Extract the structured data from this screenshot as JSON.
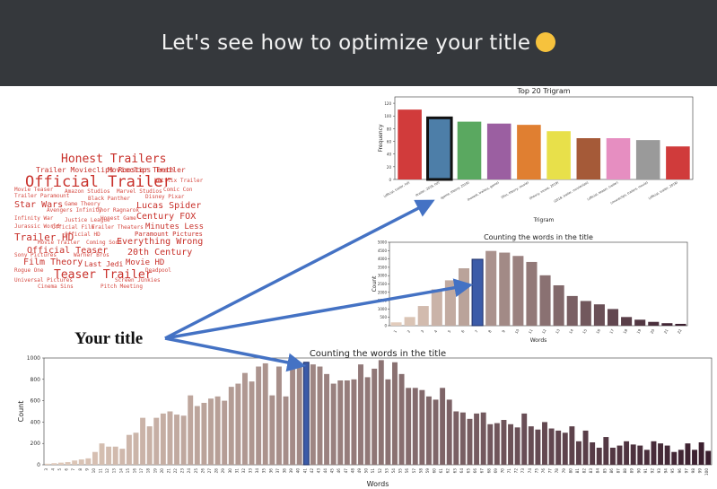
{
  "header": {
    "title": "Let's see how to optimize your title",
    "emoji": "thinking-face"
  },
  "annotation": {
    "label": "Your title"
  },
  "colors": {
    "header_bg": "#35383c",
    "arrow": "#4472c4",
    "highlight": "#3b5ba8"
  },
  "wordcloud": {
    "large_words": [
      "Honest Trailers",
      "Official Trailer",
      "Trailer HD",
      "Official Teaser",
      "Teaser Trailer",
      "Film Theory",
      "Star Wars",
      "Everything Wrong",
      "Minutes Less",
      "20th Century",
      "Century FOX",
      "Lucas Spider",
      "Paramount Pictures",
      "Movieclips Trailer",
      "Movie HD",
      "Last Jedi",
      "Trailer Movieclips Rooster Teeth"
    ],
    "small_words": [
      "Movie Teaser",
      "Amazon Studios",
      "Marvel Studios",
      "Trailer Paramount",
      "Black Panther",
      "Avengers Infinity",
      "Thor Ragnarok",
      "Infinity War",
      "Justice League",
      "Jurassic World",
      "Official Film",
      "Trailer Theaters",
      "Movie Trailer",
      "Coming Soon",
      "Sony Pictures",
      "Warner Bros",
      "Universal Pictures",
      "Screen Junkies",
      "Cinema Sins",
      "Pitch Meeting",
      "Netflix Trailer",
      "Comic Con",
      "Deadpool",
      "Rogue One",
      "Game Theory",
      "Honest Game",
      "Official HD",
      "Disney Pixar"
    ]
  },
  "charts": {
    "trigram": {
      "chart_data": {
        "type": "bar",
        "title": "Top 20 Trigram",
        "xlabel": "Trigram",
        "ylabel": "Frequency",
        "ylim": [
          0,
          130
        ],
        "yticks": [
          0,
          20,
          40,
          60,
          80,
          100,
          120
        ],
        "categories": [
          "(official, trailer, hd)",
          "(trailer, 2018, hd)",
          "(game, theory, 2018)",
          "(honest, trailers, game)",
          "(film, theory, movie)",
          "(theory, movie, 2019)",
          "(2018, trailer, movieclips)",
          "(official, teaser, trailer)",
          "(movieclips, trailers, movie)",
          "(official, trailer, 2018)"
        ],
        "values": [
          110,
          97,
          91,
          88,
          86,
          76,
          65,
          65,
          62,
          52
        ],
        "highlight_index": 1
      }
    },
    "words_small": {
      "chart_data": {
        "type": "bar",
        "title": "Counting the words in the title",
        "xlabel": "Words",
        "ylabel": "Count",
        "ylim": [
          0,
          5000
        ],
        "yticks": [
          0,
          500,
          1000,
          1500,
          2000,
          2500,
          3000,
          3500,
          4000,
          4500,
          5000
        ],
        "categories": [
          "1",
          "2",
          "3",
          "4",
          "5",
          "6",
          "7",
          "8",
          "9",
          "10",
          "11",
          "12",
          "13",
          "14",
          "15",
          "16",
          "17",
          "18",
          "19",
          "20",
          "21",
          "22"
        ],
        "values": [
          200,
          520,
          1180,
          2180,
          2720,
          3440,
          3980,
          4480,
          4380,
          4180,
          3820,
          3020,
          2420,
          1780,
          1480,
          1280,
          1000,
          520,
          360,
          230,
          150,
          110
        ],
        "highlight_index": 6
      }
    },
    "words_large": {
      "chart_data": {
        "type": "bar",
        "title": "Counting the words in the title",
        "xlabel": "Words",
        "ylabel": "Count",
        "ylim": [
          0,
          1000
        ],
        "yticks": [
          0,
          200,
          400,
          600,
          800,
          1000
        ],
        "x_start": 3,
        "x_end": 100,
        "values": [
          10,
          15,
          20,
          25,
          40,
          50,
          60,
          120,
          200,
          170,
          170,
          150,
          280,
          300,
          440,
          360,
          440,
          480,
          500,
          470,
          460,
          650,
          550,
          580,
          620,
          640,
          600,
          730,
          760,
          860,
          780,
          920,
          950,
          650,
          920,
          640,
          930,
          940,
          960,
          940,
          920,
          850,
          760,
          790,
          790,
          800,
          940,
          820,
          900,
          980,
          800,
          960,
          850,
          720,
          720,
          700,
          640,
          610,
          720,
          610,
          500,
          490,
          430,
          480,
          490,
          380,
          390,
          420,
          380,
          350,
          480,
          360,
          330,
          400,
          340,
          320,
          300,
          360,
          220,
          320,
          210,
          160,
          260,
          160,
          180,
          220,
          190,
          180,
          140,
          220,
          200,
          180,
          120,
          140,
          200,
          140,
          210,
          130
        ],
        "highlight_index": 38
      }
    }
  }
}
